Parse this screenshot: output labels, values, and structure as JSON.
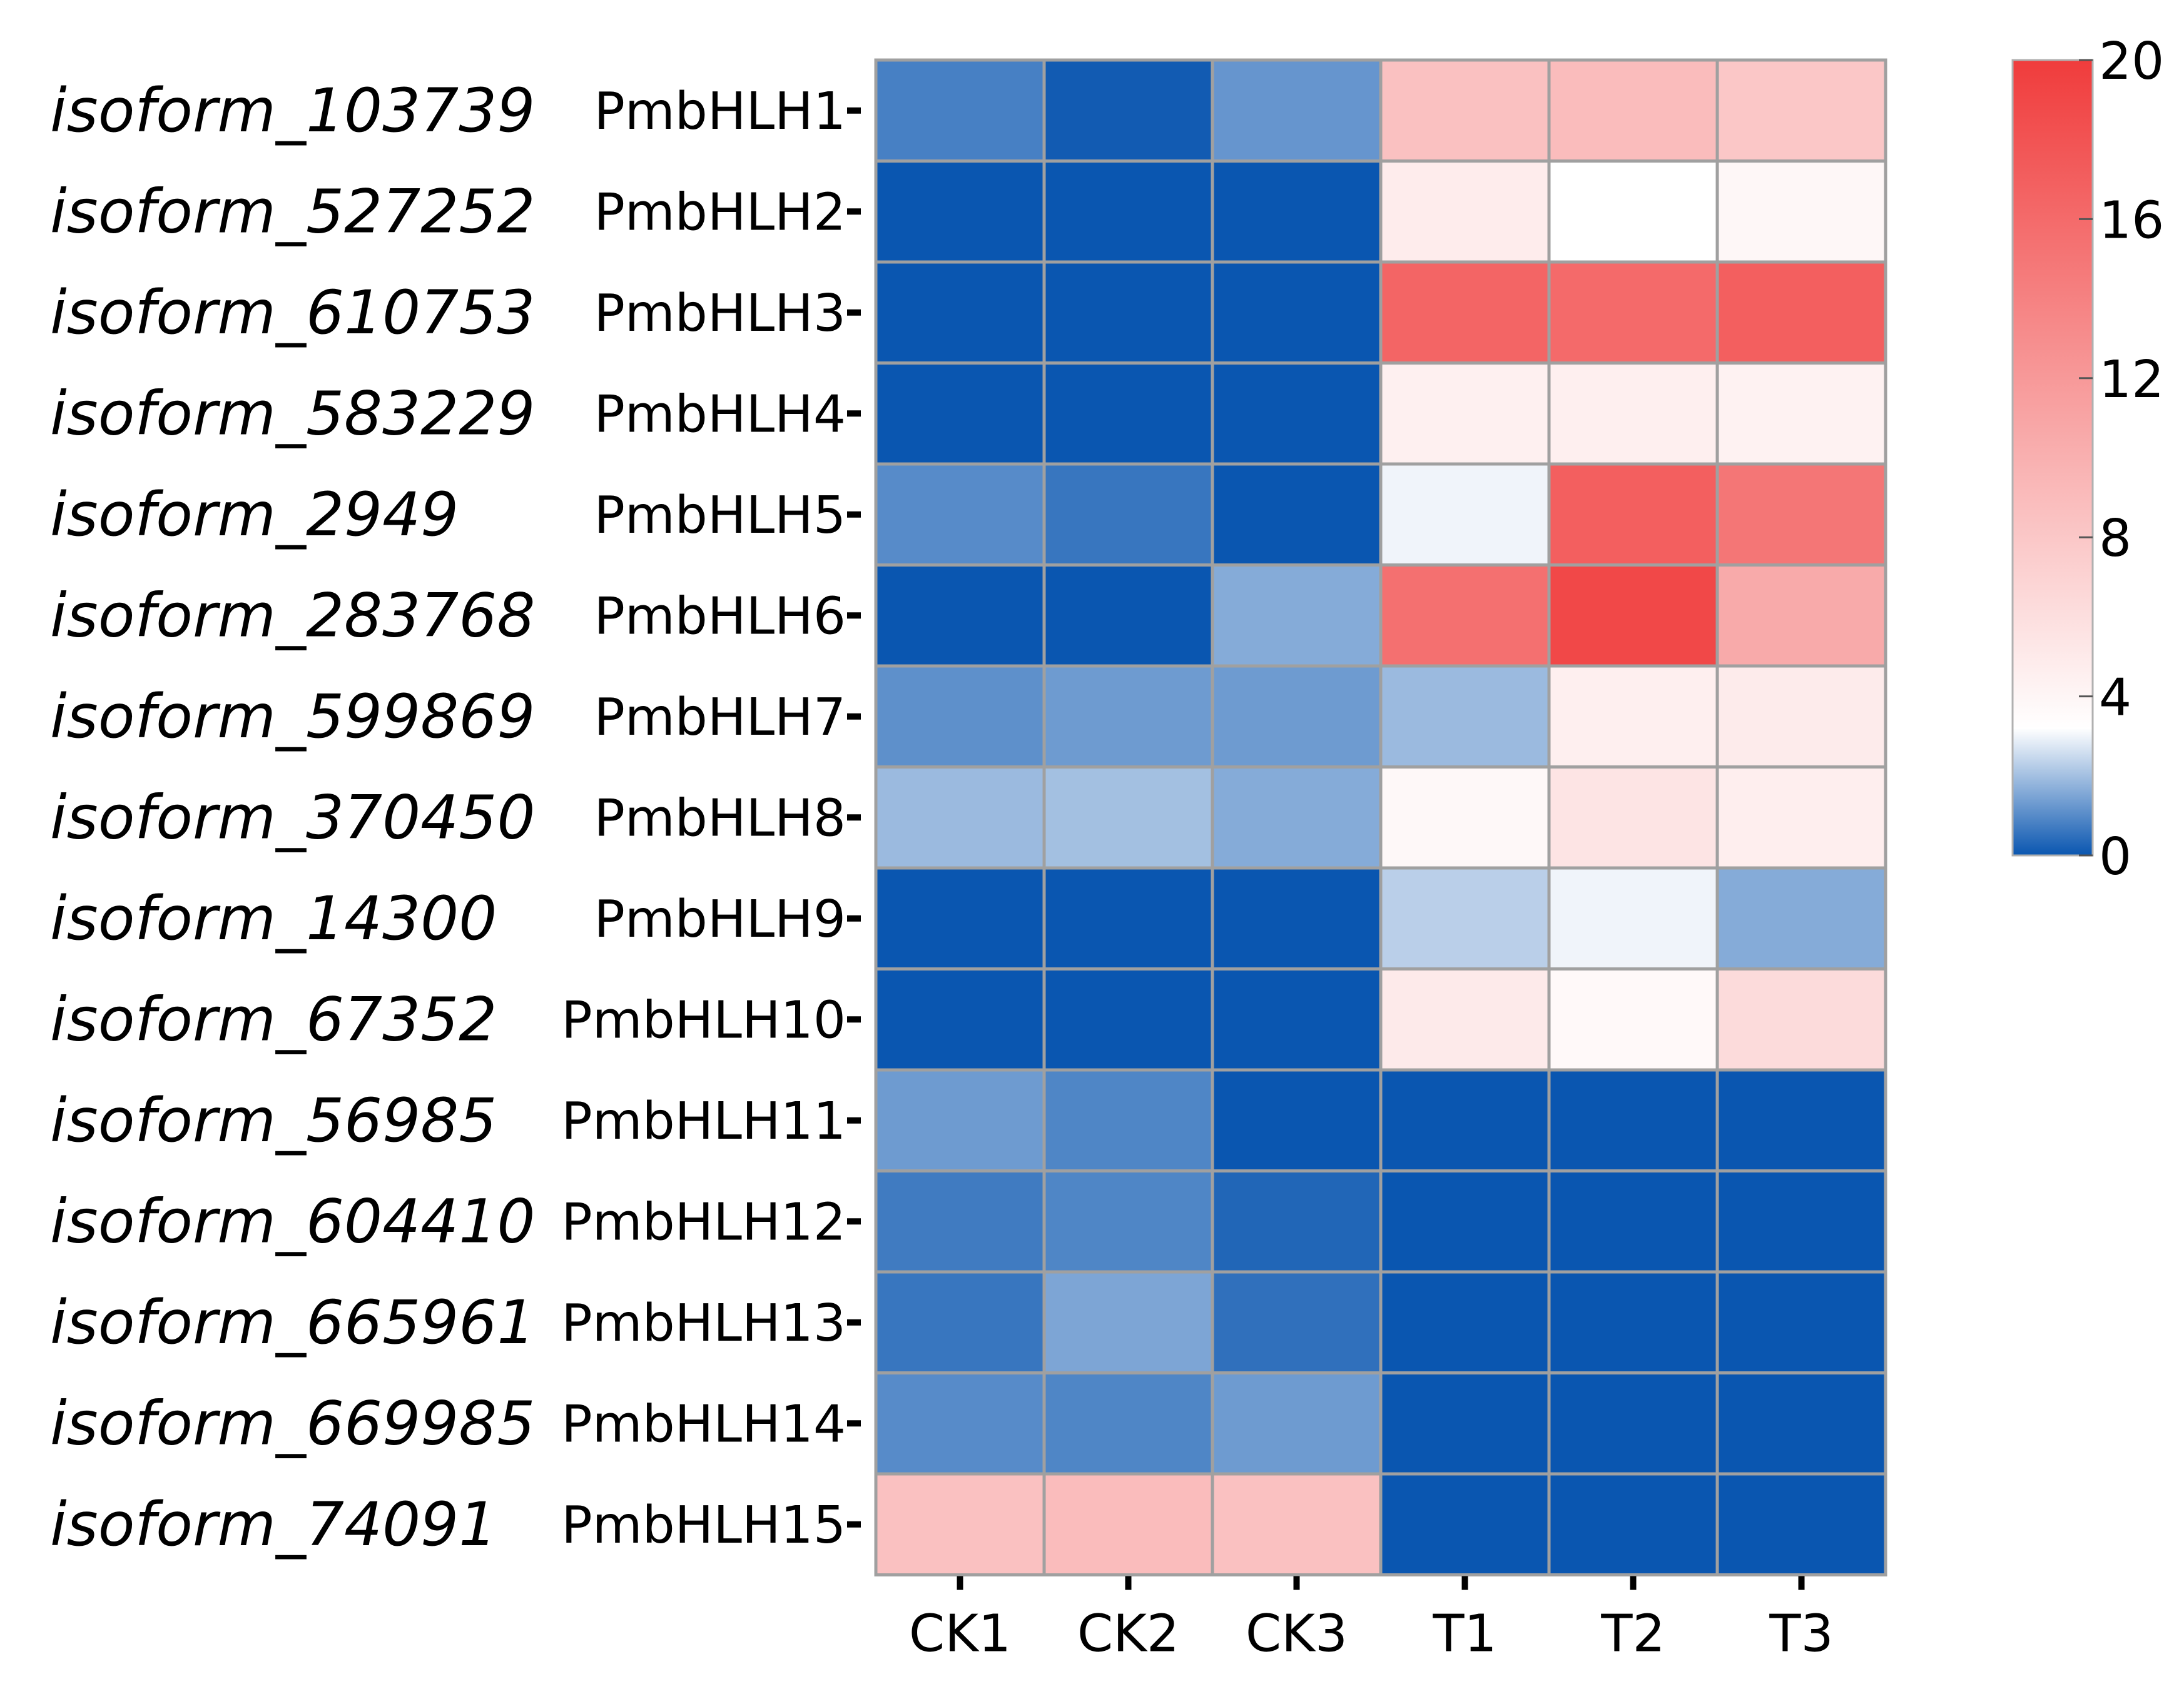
{
  "chart_data": {
    "type": "heatmap",
    "columns": [
      "CK1",
      "CK2",
      "CK3",
      "T1",
      "T2",
      "T3"
    ],
    "rows": [
      {
        "isoform": "isoform_103739",
        "gene": "PmbHLH1",
        "values": [
          0.8,
          0.1,
          1.2,
          8.5,
          9.0,
          8.0
        ]
      },
      {
        "isoform": "isoform_527252",
        "gene": "PmbHLH2",
        "values": [
          0.0,
          0.0,
          0.0,
          4.8,
          3.2,
          3.9
        ]
      },
      {
        "isoform": "isoform_610753",
        "gene": "PmbHLH3",
        "values": [
          0.0,
          0.0,
          0.0,
          16.5,
          16.0,
          17.0
        ]
      },
      {
        "isoform": "isoform_583229",
        "gene": "PmbHLH4",
        "values": [
          0.0,
          0.0,
          0.0,
          4.5,
          4.6,
          4.3
        ]
      },
      {
        "isoform": "isoform_2949",
        "gene": "PmbHLH5",
        "values": [
          1.0,
          0.6,
          0.0,
          3.0,
          17.0,
          15.0
        ]
      },
      {
        "isoform": "isoform_283768",
        "gene": "PmbHLH6",
        "values": [
          0.0,
          0.0,
          1.6,
          15.5,
          19.0,
          10.5
        ]
      },
      {
        "isoform": "isoform_599869",
        "gene": "PmbHLH7",
        "values": [
          1.1,
          1.3,
          1.3,
          1.9,
          4.6,
          4.9
        ]
      },
      {
        "isoform": "isoform_370450",
        "gene": "PmbHLH8",
        "values": [
          1.9,
          2.0,
          1.6,
          3.8,
          5.5,
          4.7
        ]
      },
      {
        "isoform": "isoform_14300",
        "gene": "PmbHLH9",
        "values": [
          0.0,
          0.0,
          0.0,
          2.3,
          3.0,
          1.6
        ]
      },
      {
        "isoform": "isoform_67352",
        "gene": "PmbHLH10",
        "values": [
          0.0,
          0.0,
          0.0,
          5.0,
          3.7,
          6.3
        ]
      },
      {
        "isoform": "isoform_56985",
        "gene": "PmbHLH11",
        "values": [
          1.3,
          0.9,
          0.0,
          0.0,
          0.0,
          0.0
        ]
      },
      {
        "isoform": "isoform_604410",
        "gene": "PmbHLH12",
        "values": [
          0.7,
          0.9,
          0.3,
          0.0,
          0.0,
          0.0
        ]
      },
      {
        "isoform": "isoform_665961",
        "gene": "PmbHLH13",
        "values": [
          0.6,
          1.5,
          0.5,
          0.0,
          0.0,
          0.0
        ]
      },
      {
        "isoform": "isoform_669985",
        "gene": "PmbHLH14",
        "values": [
          1.0,
          0.9,
          1.3,
          0.0,
          0.0,
          0.0
        ]
      },
      {
        "isoform": "isoform_74091",
        "gene": "PmbHLH15",
        "values": [
          8.5,
          9.0,
          8.5,
          0.0,
          0.0,
          0.0
        ]
      }
    ],
    "colorbar": {
      "min": 0,
      "max": 20,
      "ticks": [
        0,
        4,
        8,
        12,
        16,
        20
      ],
      "tick_labels": [
        "0",
        "4",
        "8",
        "12",
        "16",
        "20"
      ],
      "colors": [
        "#0a56b0",
        "#ffffff",
        "#f03c3c"
      ],
      "midpoint": 3.2
    },
    "cell_border_color": "#a0a0a0",
    "legend_position": "right"
  }
}
